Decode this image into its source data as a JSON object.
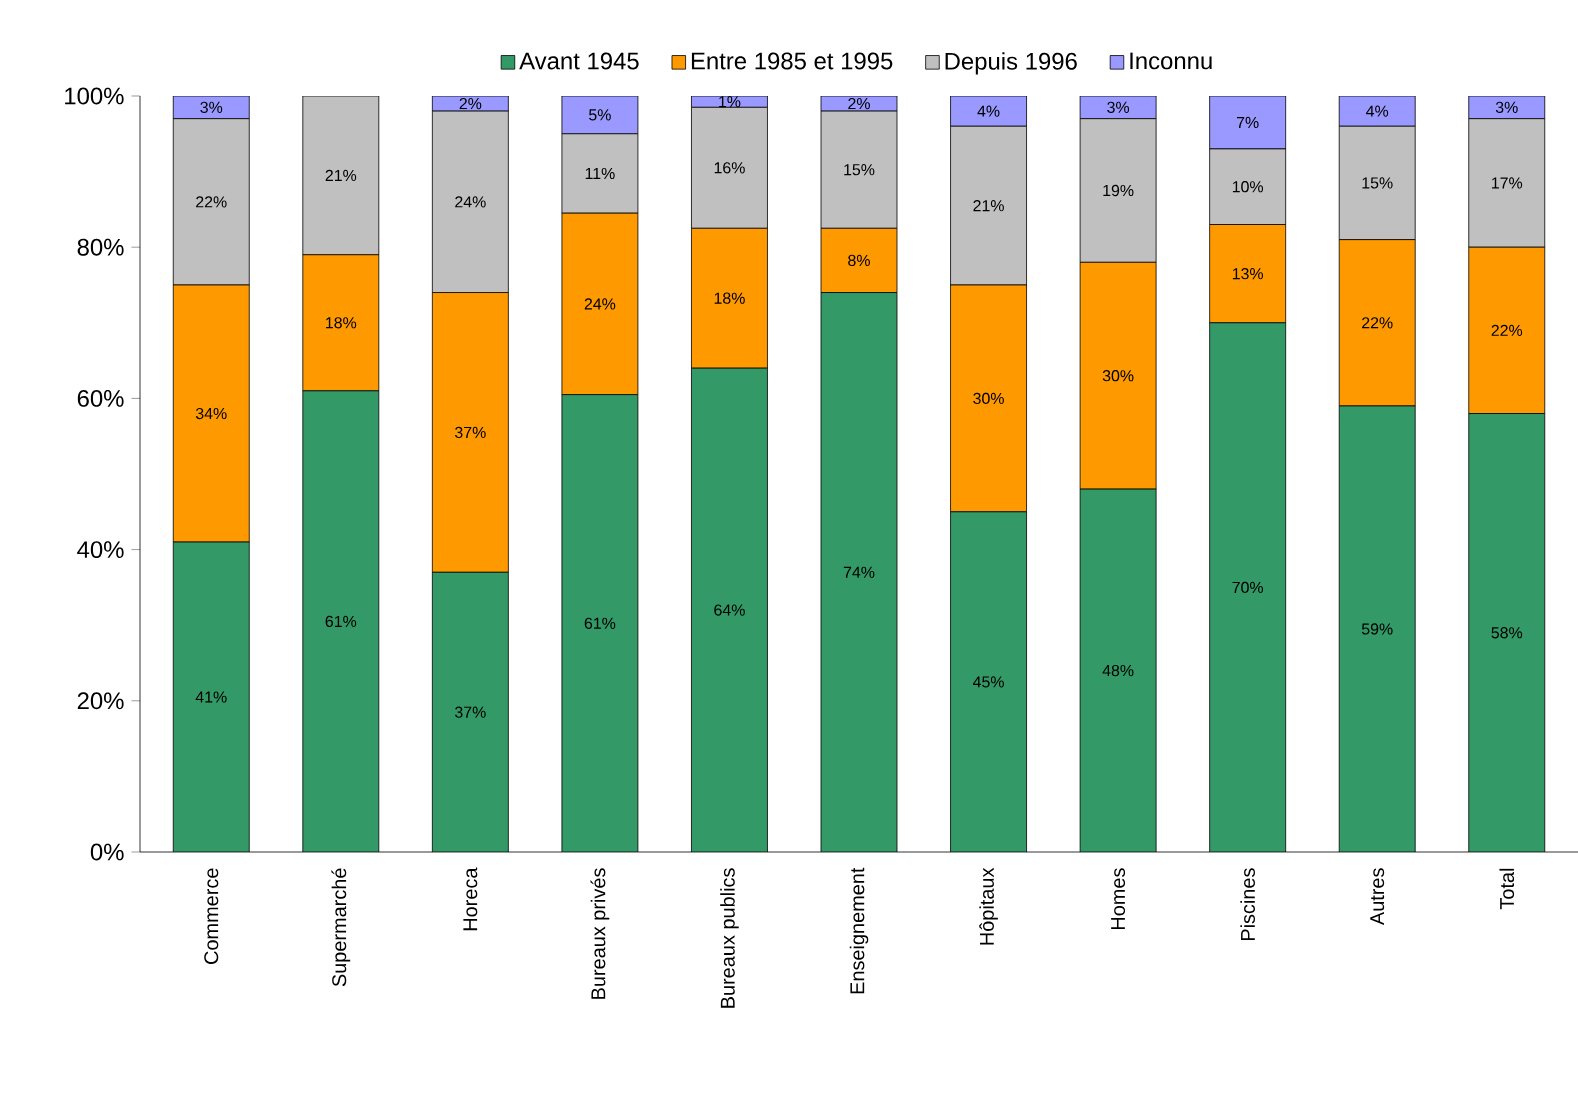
{
  "chart_data": {
    "type": "bar",
    "stacked": true,
    "legend": "top",
    "categories": [
      "Commerce",
      "Supermarché",
      "Horeca",
      "Bureaux privés",
      "Bureaux publics",
      "Enseignement",
      "Hôpitaux",
      "Homes",
      "Piscines",
      "Autres",
      "Total"
    ],
    "ylim": [
      0,
      100
    ],
    "yticks": [
      {
        "value": 0,
        "label": "0%"
      },
      {
        "value": 20,
        "label": "20%"
      },
      {
        "value": 40,
        "label": "40%"
      },
      {
        "value": 60,
        "label": "60%"
      },
      {
        "value": 80,
        "label": "80%"
      },
      {
        "value": 100,
        "label": "100%"
      }
    ],
    "series": [
      {
        "name": "Avant 1945",
        "color": "#339966",
        "values": [
          41,
          61,
          37,
          60.5,
          64,
          74,
          45,
          48,
          70,
          59,
          58
        ],
        "value_labels": [
          "41%",
          "61%",
          "37%",
          "61%",
          "64%",
          "74%",
          "45%",
          "48%",
          "70%",
          "59%",
          "58%"
        ]
      },
      {
        "name": "Entre 1985 et 1995",
        "color": "#ff9900",
        "values": [
          34,
          18,
          37,
          24,
          18.5,
          8.5,
          30,
          30,
          13,
          22,
          22
        ],
        "value_labels": [
          "34%",
          "18%",
          "37%",
          "24%",
          "18%",
          "8%",
          "30%",
          "30%",
          "13%",
          "22%",
          "22%"
        ]
      },
      {
        "name": "Depuis 1996",
        "color": "#c0c0c0",
        "values": [
          22,
          21,
          24,
          10.5,
          16,
          15.5,
          21,
          19,
          10,
          15,
          17
        ],
        "value_labels": [
          "22%",
          "21%",
          "24%",
          "11%",
          "16%",
          "15%",
          "21%",
          "19%",
          "10%",
          "15%",
          "17%"
        ]
      },
      {
        "name": "Inconnu",
        "color": "#9999ff",
        "values": [
          3,
          0,
          2,
          5,
          1.5,
          2,
          4,
          3,
          7,
          4,
          3
        ],
        "value_labels": [
          "3%",
          null,
          "2%",
          "5%",
          "1%",
          "2%",
          "4%",
          "3%",
          "7%",
          "4%",
          "3%"
        ]
      }
    ]
  }
}
